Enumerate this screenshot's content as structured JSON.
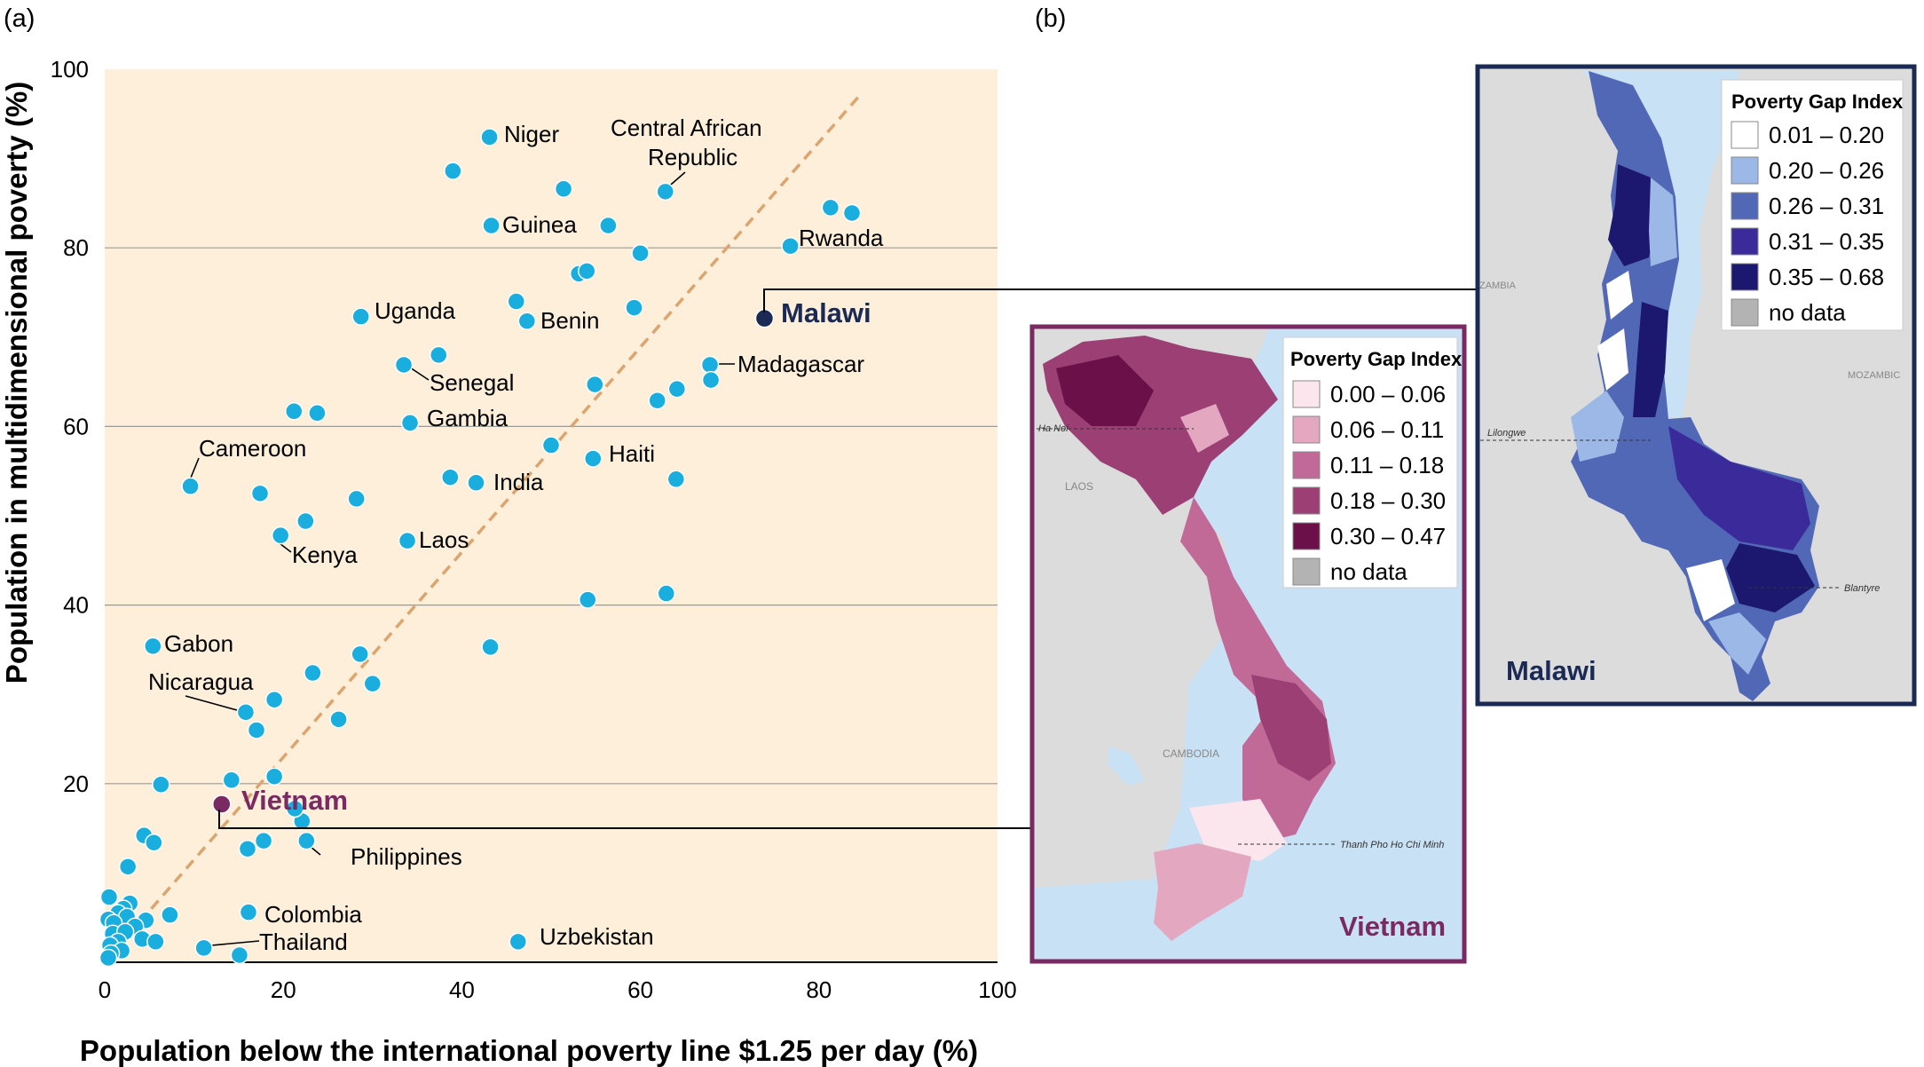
{
  "panel_a_label": "(a)",
  "panel_b_label": "(b)",
  "colors": {
    "plot_bg": "#fdefd9",
    "point": "#19aede",
    "point_stroke": "#ffffff",
    "diagonal": "#dca56f",
    "malawi": "#1b2a55",
    "vietnam": "#7a2a63",
    "gridline": "#9a9a9a",
    "water": "#c9e1f4",
    "land": "#dcdcdc"
  },
  "chart_data": {
    "type": "scatter",
    "xlabel": "Population below the international poverty line $1.25 per day (%)",
    "ylabel": "Population in multidimensional poverty (%)",
    "xlim": [
      0,
      100
    ],
    "ylim": [
      0,
      100
    ],
    "xticks": [
      "0",
      "20",
      "40",
      "60",
      "80",
      "100"
    ],
    "yticks": [
      "20",
      "40",
      "60",
      "80",
      "100"
    ],
    "grid": "horizontal",
    "reference_line": "y = x (dashed)",
    "points": [
      {
        "x": 43.1,
        "y": 92.4,
        "label": "Niger"
      },
      {
        "x": 39.0,
        "y": 88.6
      },
      {
        "x": 51.4,
        "y": 86.6
      },
      {
        "x": 62.8,
        "y": 86.3,
        "label": "Central African Republic"
      },
      {
        "x": 43.3,
        "y": 82.5,
        "label": "Guinea"
      },
      {
        "x": 56.4,
        "y": 82.5
      },
      {
        "x": 81.3,
        "y": 84.5
      },
      {
        "x": 83.7,
        "y": 83.9
      },
      {
        "x": 76.8,
        "y": 80.2,
        "label": "Rwanda"
      },
      {
        "x": 60.0,
        "y": 79.4
      },
      {
        "x": 53.1,
        "y": 77.1
      },
      {
        "x": 54.0,
        "y": 77.4
      },
      {
        "x": 46.1,
        "y": 74.0
      },
      {
        "x": 59.3,
        "y": 73.3
      },
      {
        "x": 28.7,
        "y": 72.3,
        "label": "Uganda"
      },
      {
        "x": 47.3,
        "y": 71.8,
        "label": "Benin"
      },
      {
        "x": 73.9,
        "y": 72.1,
        "label": "Malawi",
        "highlight": true
      },
      {
        "x": 37.4,
        "y": 68.0
      },
      {
        "x": 33.5,
        "y": 66.9,
        "label": "Senegal"
      },
      {
        "x": 67.8,
        "y": 66.9,
        "label": "Madagascar"
      },
      {
        "x": 67.9,
        "y": 65.2
      },
      {
        "x": 54.9,
        "y": 64.7
      },
      {
        "x": 64.1,
        "y": 64.2
      },
      {
        "x": 61.9,
        "y": 62.9
      },
      {
        "x": 21.2,
        "y": 61.7
      },
      {
        "x": 23.8,
        "y": 61.5
      },
      {
        "x": 34.2,
        "y": 60.4,
        "label": "Gambia"
      },
      {
        "x": 50.0,
        "y": 57.9
      },
      {
        "x": 54.7,
        "y": 56.4,
        "label": "Haiti"
      },
      {
        "x": 38.7,
        "y": 54.3
      },
      {
        "x": 41.6,
        "y": 53.7,
        "label": "India"
      },
      {
        "x": 64.0,
        "y": 54.1
      },
      {
        "x": 9.6,
        "y": 53.3,
        "label": "Cameroon"
      },
      {
        "x": 17.4,
        "y": 52.5
      },
      {
        "x": 28.2,
        "y": 51.9
      },
      {
        "x": 22.5,
        "y": 49.4
      },
      {
        "x": 19.7,
        "y": 47.8,
        "label": "Kenya"
      },
      {
        "x": 33.9,
        "y": 47.2,
        "label": "Laos"
      },
      {
        "x": 54.1,
        "y": 40.6
      },
      {
        "x": 62.9,
        "y": 41.3
      },
      {
        "x": 5.4,
        "y": 35.4,
        "label": "Gabon"
      },
      {
        "x": 43.2,
        "y": 35.3
      },
      {
        "x": 28.6,
        "y": 34.5
      },
      {
        "x": 23.3,
        "y": 32.4
      },
      {
        "x": 30.0,
        "y": 31.2
      },
      {
        "x": 19.0,
        "y": 29.4
      },
      {
        "x": 15.8,
        "y": 28.0,
        "label": "Nicaragua"
      },
      {
        "x": 26.2,
        "y": 27.2
      },
      {
        "x": 17.0,
        "y": 26.0
      },
      {
        "x": 6.3,
        "y": 19.9
      },
      {
        "x": 14.2,
        "y": 20.4
      },
      {
        "x": 19.0,
        "y": 20.8
      },
      {
        "x": 13.1,
        "y": 17.7,
        "label": "Vietnam",
        "highlight": true
      },
      {
        "x": 22.1,
        "y": 15.8,
        "label": "Philippines"
      },
      {
        "x": 21.3,
        "y": 17.2
      },
      {
        "x": 4.4,
        "y": 14.2
      },
      {
        "x": 5.5,
        "y": 13.4
      },
      {
        "x": 17.8,
        "y": 13.6
      },
      {
        "x": 22.6,
        "y": 13.6
      },
      {
        "x": 16.0,
        "y": 12.7
      },
      {
        "x": 2.6,
        "y": 10.7
      },
      {
        "x": 0.5,
        "y": 7.3
      },
      {
        "x": 2.8,
        "y": 6.6
      },
      {
        "x": 2.1,
        "y": 6.0
      },
      {
        "x": 1.5,
        "y": 5.5
      },
      {
        "x": 7.3,
        "y": 5.3
      },
      {
        "x": 2.5,
        "y": 5.1
      },
      {
        "x": 0.4,
        "y": 4.8
      },
      {
        "x": 4.6,
        "y": 4.7
      },
      {
        "x": 1.0,
        "y": 4.4
      },
      {
        "x": 3.4,
        "y": 4.0
      },
      {
        "x": 0.9,
        "y": 3.2
      },
      {
        "x": 2.3,
        "y": 3.4
      },
      {
        "x": 4.2,
        "y": 2.6
      },
      {
        "x": 5.7,
        "y": 2.3
      },
      {
        "x": 1.5,
        "y": 2.3
      },
      {
        "x": 0.6,
        "y": 1.9
      },
      {
        "x": 1.9,
        "y": 1.3
      },
      {
        "x": 0.7,
        "y": 1.0
      },
      {
        "x": 0.4,
        "y": 0.5
      },
      {
        "x": 16.1,
        "y": 5.6,
        "label": "Colombia"
      },
      {
        "x": 11.1,
        "y": 1.6,
        "label": "Thailand"
      },
      {
        "x": 15.1,
        "y": 0.8
      },
      {
        "x": 46.3,
        "y": 2.3,
        "label": "Uzbekistan"
      }
    ]
  },
  "label_text": {
    "niger": "Niger",
    "car_1": "Central African",
    "car_2": "Republic",
    "guinea": "Guinea",
    "rwanda": "Rwanda",
    "uganda": "Uganda",
    "benin": "Benin",
    "malawi": "Malawi",
    "senegal": "Senegal",
    "madagascar": "Madagascar",
    "gambia": "Gambia",
    "haiti": "Haiti",
    "india": "India",
    "cameroon": "Cameroon",
    "kenya": "Kenya",
    "laos": "Laos",
    "gabon": "Gabon",
    "nicaragua": "Nicaragua",
    "vietnam": "Vietnam",
    "philippines": "Philippines",
    "colombia": "Colombia",
    "thailand": "Thailand",
    "uzbekistan": "Uzbekistan"
  },
  "malawi_map": {
    "title": "Malawi",
    "legend_title": "Poverty Gap Index",
    "legend": [
      {
        "label": "0.01 – 0.20",
        "color": "#ffffff"
      },
      {
        "label": "0.20 – 0.26",
        "color": "#9bb8e6"
      },
      {
        "label": "0.26 – 0.31",
        "color": "#5068b6"
      },
      {
        "label": "0.31 – 0.35",
        "color": "#3a2a9a"
      },
      {
        "label": "0.35 – 0.68",
        "color": "#1c1870"
      },
      {
        "label": "no data",
        "color": "#b3b3b3"
      }
    ],
    "place_labels": {
      "zambia": "ZAMBIA",
      "mozambique": "MOZAMBIC",
      "lilongwe": "Lilongwe",
      "blantyre": "Blantyre"
    }
  },
  "vietnam_map": {
    "title": "Vietnam",
    "legend_title": "Poverty Gap Index",
    "legend": [
      {
        "label": "0.00 – 0.06",
        "color": "#fbe6ee"
      },
      {
        "label": "0.06 – 0.11",
        "color": "#e3a7c0"
      },
      {
        "label": "0.11 – 0.18",
        "color": "#c26a97"
      },
      {
        "label": "0.18 – 0.30",
        "color": "#9b3f75"
      },
      {
        "label": "0.30 – 0.47",
        "color": "#6b1048"
      },
      {
        "label": "no data",
        "color": "#b3b3b3"
      }
    ],
    "place_labels": {
      "hanoi": "Ha Noi",
      "laos": "LAOS",
      "cambodia": "CAMBODIA",
      "hcmc": "Thanh Pho Ho Chi Minh"
    }
  }
}
